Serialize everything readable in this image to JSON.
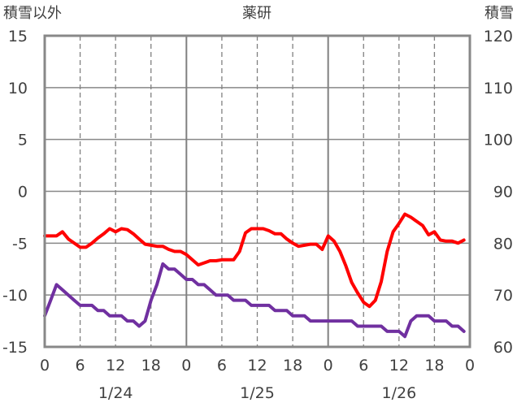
{
  "chart_data": {
    "type": "line",
    "title": "薬研",
    "left_axis": {
      "label": "積雪以外",
      "ylim": [
        -15,
        15
      ],
      "ticks": [
        15,
        10,
        5,
        0,
        -5,
        -10,
        -15
      ]
    },
    "right_axis": {
      "label": "積雪",
      "ylim": [
        60,
        120
      ],
      "ticks": [
        120,
        110,
        100,
        90,
        80,
        70,
        60
      ]
    },
    "x_ticks": [
      "0",
      "6",
      "12",
      "18",
      "0",
      "6",
      "12",
      "18",
      "0",
      "6",
      "12",
      "18",
      "0"
    ],
    "date_labels": [
      "1/24",
      "1/25",
      "1/26"
    ],
    "grid": true,
    "series": [
      {
        "color": "#ff0000",
        "axis": "left",
        "x": [
          0,
          1,
          2,
          3,
          4,
          5,
          6,
          7,
          8,
          9,
          10,
          11,
          12,
          13,
          14,
          15,
          16,
          17,
          18,
          19,
          20,
          21,
          22,
          23,
          24,
          25,
          26,
          27,
          28,
          29,
          30,
          31,
          32,
          33,
          34,
          35,
          36,
          37,
          38,
          39,
          40,
          41,
          42,
          43,
          44,
          45,
          46,
          47,
          48,
          49,
          50,
          51,
          52,
          53,
          54,
          55,
          56,
          57,
          58,
          59,
          60,
          61,
          62,
          63,
          64,
          65,
          66,
          67,
          68,
          69,
          70,
          71
        ],
        "values": [
          -4.3,
          -4.3,
          -4.3,
          -3.9,
          -4.6,
          -5.0,
          -5.4,
          -5.4,
          -5.0,
          -4.5,
          -4.1,
          -3.6,
          -3.9,
          -3.6,
          -3.7,
          -4.1,
          -4.6,
          -5.1,
          -5.2,
          -5.3,
          -5.3,
          -5.6,
          -5.8,
          -5.8,
          -6.1,
          -6.6,
          -7.1,
          -6.9,
          -6.7,
          -6.7,
          -6.6,
          -6.6,
          -6.6,
          -5.8,
          -4.0,
          -3.6,
          -3.6,
          -3.6,
          -3.8,
          -4.1,
          -4.1,
          -4.6,
          -5.0,
          -5.3,
          -5.2,
          -5.1,
          -5.1,
          -5.6,
          -4.3,
          -4.8,
          -5.8,
          -7.2,
          -8.8,
          -9.8,
          -10.7,
          -11.1,
          -10.5,
          -8.7,
          -5.8,
          -3.9,
          -3.1,
          -2.2,
          -2.5,
          -2.9,
          -3.3,
          -4.2,
          -3.9,
          -4.7,
          -4.8,
          -4.8,
          -5.0,
          -4.7
        ]
      },
      {
        "color": "#7030a0",
        "axis": "right",
        "x": [
          0,
          1,
          2,
          3,
          4,
          5,
          6,
          7,
          8,
          9,
          10,
          11,
          12,
          13,
          14,
          15,
          16,
          17,
          18,
          19,
          20,
          21,
          22,
          23,
          24,
          25,
          26,
          27,
          28,
          29,
          30,
          31,
          32,
          33,
          34,
          35,
          36,
          37,
          38,
          39,
          40,
          41,
          42,
          43,
          44,
          45,
          46,
          47,
          48,
          49,
          50,
          51,
          52,
          53,
          54,
          55,
          56,
          57,
          58,
          59,
          60,
          61,
          62,
          63,
          64,
          65,
          66,
          67,
          68,
          69,
          70,
          71
        ],
        "values": [
          66,
          69,
          72,
          71,
          70,
          69,
          68,
          68,
          68,
          67,
          67,
          66,
          66,
          66,
          65,
          65,
          64,
          65,
          69,
          72,
          76,
          75,
          75,
          74,
          73,
          73,
          72,
          72,
          71,
          70,
          70,
          70,
          69,
          69,
          69,
          68,
          68,
          68,
          68,
          67,
          67,
          67,
          66,
          66,
          66,
          65,
          65,
          65,
          65,
          65,
          65,
          65,
          65,
          64,
          64,
          64,
          64,
          64,
          63,
          63,
          63,
          62,
          65,
          66,
          66,
          66,
          65,
          65,
          65,
          64,
          64,
          63
        ]
      }
    ]
  }
}
